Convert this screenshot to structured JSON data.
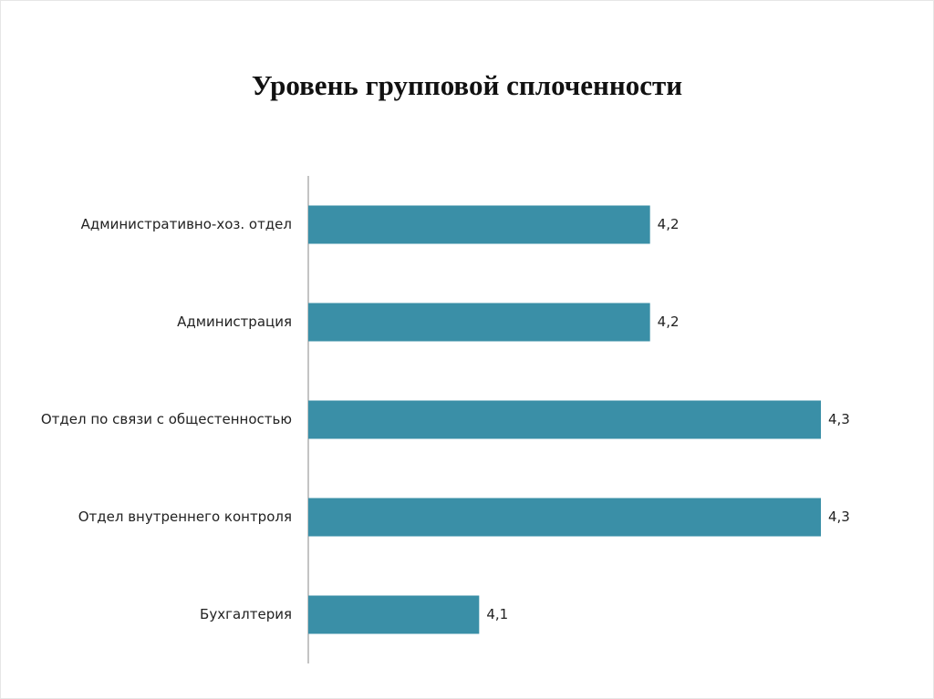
{
  "chart_data": {
    "type": "barh",
    "title": "Уровень групповой сплоченности",
    "categories": [
      "Административно-хоз. отдел",
      "Администрация",
      "Отдел по связи с общестенностью",
      "Отдел внутреннего контроля",
      "Бухгалтерия"
    ],
    "values": [
      4.2,
      4.2,
      4.3,
      4.3,
      4.1
    ],
    "value_labels": [
      "4,2",
      "4,2",
      "4,3",
      "4,3",
      "4,1"
    ],
    "color": "#3a8fa7",
    "xlim": [
      4.0,
      4.3
    ]
  }
}
